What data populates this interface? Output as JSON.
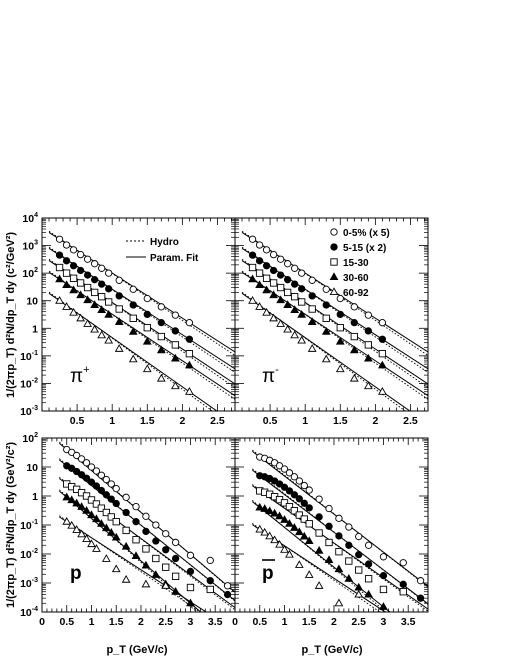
{
  "figure": {
    "y_label_top": "1/(2πp_T) d²N/dp_T dy (c²/GeV²)",
    "y_label_bottom": "1/(2πp_T) d²N/dp_T dy (GeV²/c²)",
    "x_label": "p_T (GeV/c)"
  },
  "legend_top": {
    "lines": [
      {
        "label": "Hydro",
        "style": "dotted"
      },
      {
        "label": "Param. Fit",
        "style": "solid"
      }
    ],
    "markers": [
      {
        "label": "0-5% (x 5)",
        "marker": "open-circle"
      },
      {
        "label": "5-15 (x 2)",
        "marker": "filled-circle"
      },
      {
        "label": "15-30",
        "marker": "open-square"
      },
      {
        "label": "30-60",
        "marker": "filled-triangle"
      },
      {
        "label": "60-92",
        "marker": "open-triangle"
      }
    ]
  },
  "chart_data": [
    {
      "type": "scatter",
      "panel": "pi-plus",
      "particle_label": "π+",
      "log_y": true,
      "xlim": [
        0,
        2.75
      ],
      "ylim": [
        0.001,
        10000
      ],
      "x_ticks": [
        "0.5",
        "1",
        "1.5",
        "2",
        "2.5"
      ],
      "y_ticks": [
        "10^-3",
        "10^-2",
        "10^-1",
        "1",
        "10",
        "10^2",
        "10^3",
        "10^4"
      ],
      "grid": false,
      "series": [
        {
          "name": "0-5% (x 5)",
          "marker": "open-circle",
          "x": [
            0.25,
            0.35,
            0.45,
            0.55,
            0.65,
            0.75,
            0.85,
            0.95,
            1.1,
            1.3,
            1.5,
            1.7,
            1.9,
            2.1
          ],
          "y": [
            1700,
            1050,
            700,
            470,
            320,
            220,
            150,
            100,
            55,
            26,
            12,
            6,
            3,
            1.6
          ]
        },
        {
          "name": "5-15 (x 2)",
          "marker": "filled-circle",
          "x": [
            0.25,
            0.35,
            0.45,
            0.55,
            0.65,
            0.75,
            0.85,
            0.95,
            1.1,
            1.3,
            1.5,
            1.7,
            1.9,
            2.1
          ],
          "y": [
            450,
            280,
            185,
            125,
            85,
            58,
            40,
            27,
            15,
            7,
            3.2,
            1.6,
            0.8,
            0.4
          ]
        },
        {
          "name": "15-30",
          "marker": "open-square",
          "x": [
            0.25,
            0.35,
            0.45,
            0.55,
            0.65,
            0.75,
            0.85,
            0.95,
            1.1,
            1.3,
            1.5,
            1.7,
            1.9,
            2.1
          ],
          "y": [
            160,
            100,
            65,
            44,
            30,
            20,
            14,
            9,
            5,
            2.3,
            1.05,
            0.5,
            0.25,
            0.12
          ]
        },
        {
          "name": "30-60",
          "marker": "filled-triangle",
          "x": [
            0.25,
            0.35,
            0.45,
            0.55,
            0.65,
            0.75,
            0.85,
            0.95,
            1.1,
            1.3,
            1.5,
            1.7,
            1.9,
            2.1
          ],
          "y": [
            60,
            37,
            24,
            16,
            10.5,
            7,
            4.6,
            3.1,
            1.7,
            0.75,
            0.33,
            0.16,
            0.08,
            0.045
          ]
        },
        {
          "name": "60-92",
          "marker": "open-triangle",
          "x": [
            0.25,
            0.35,
            0.45,
            0.55,
            0.65,
            0.75,
            0.85,
            0.95,
            1.1,
            1.3,
            1.5,
            1.7,
            1.9,
            2.1
          ],
          "y": [
            10,
            6,
            3.7,
            2.3,
            1.45,
            0.9,
            0.56,
            0.36,
            0.18,
            0.075,
            0.033,
            0.015,
            0.008,
            0.005
          ]
        }
      ]
    },
    {
      "type": "scatter",
      "panel": "pi-minus",
      "particle_label": "π-",
      "log_y": true,
      "xlim": [
        0,
        2.75
      ],
      "ylim": [
        0.001,
        10000
      ],
      "x_ticks": [
        "0.5",
        "1",
        "1.5",
        "2",
        "2.5"
      ],
      "y_ticks": [],
      "grid": false,
      "series": [
        {
          "name": "0-5% (x 5)",
          "marker": "open-circle",
          "x": [
            0.25,
            0.35,
            0.45,
            0.55,
            0.65,
            0.75,
            0.85,
            0.95,
            1.1,
            1.3,
            1.5,
            1.7,
            1.9,
            2.1
          ],
          "y": [
            1700,
            1050,
            700,
            470,
            320,
            220,
            150,
            100,
            55,
            26,
            12,
            6,
            3,
            1.6
          ]
        },
        {
          "name": "5-15 (x 2)",
          "marker": "filled-circle",
          "x": [
            0.25,
            0.35,
            0.45,
            0.55,
            0.65,
            0.75,
            0.85,
            0.95,
            1.1,
            1.3,
            1.5,
            1.7,
            1.9,
            2.1
          ],
          "y": [
            450,
            280,
            185,
            125,
            85,
            58,
            40,
            27,
            15,
            7,
            3.2,
            1.6,
            0.8,
            0.4
          ]
        },
        {
          "name": "15-30",
          "marker": "open-square",
          "x": [
            0.25,
            0.35,
            0.45,
            0.55,
            0.65,
            0.75,
            0.85,
            0.95,
            1.1,
            1.3,
            1.5,
            1.7,
            1.9,
            2.1
          ],
          "y": [
            160,
            100,
            65,
            44,
            30,
            20,
            14,
            9,
            5,
            2.3,
            1.05,
            0.5,
            0.25,
            0.12
          ]
        },
        {
          "name": "30-60",
          "marker": "filled-triangle",
          "x": [
            0.25,
            0.35,
            0.45,
            0.55,
            0.65,
            0.75,
            0.85,
            0.95,
            1.1,
            1.3,
            1.5,
            1.7,
            1.9,
            2.1
          ],
          "y": [
            60,
            37,
            24,
            16,
            10.5,
            7,
            4.6,
            3.1,
            1.7,
            0.75,
            0.33,
            0.16,
            0.08,
            0.045
          ]
        },
        {
          "name": "60-92",
          "marker": "open-triangle",
          "x": [
            0.25,
            0.35,
            0.45,
            0.55,
            0.65,
            0.75,
            0.85,
            0.95,
            1.1,
            1.3,
            1.5,
            1.7,
            1.9,
            2.1
          ],
          "y": [
            10,
            6,
            3.7,
            2.3,
            1.45,
            0.9,
            0.56,
            0.36,
            0.18,
            0.075,
            0.033,
            0.015,
            0.008,
            0.005
          ]
        }
      ]
    },
    {
      "type": "scatter",
      "panel": "proton",
      "particle_label": "p",
      "log_y": true,
      "xlim": [
        0,
        3.9
      ],
      "ylim": [
        0.0001,
        100
      ],
      "x_ticks": [
        "0",
        "0.5",
        "1",
        "1.5",
        "2",
        "2.5",
        "3",
        "3.5"
      ],
      "y_ticks": [
        "10^-4",
        "10^-3",
        "10^-2",
        "10^-1",
        "1",
        "10",
        "10^2"
      ],
      "grid": false,
      "series": [
        {
          "name": "0-5% (x 5)",
          "marker": "open-circle",
          "x": [
            0.5,
            0.6,
            0.7,
            0.8,
            0.9,
            1.0,
            1.1,
            1.2,
            1.3,
            1.4,
            1.5,
            1.7,
            1.9,
            2.1,
            2.3,
            2.5,
            2.7,
            3.0,
            3.4,
            3.75
          ],
          "y": [
            40,
            32,
            25,
            19,
            14,
            10,
            7.3,
            5.2,
            3.7,
            2.6,
            1.8,
            0.9,
            0.43,
            0.2,
            0.1,
            0.05,
            0.025,
            0.009,
            0.006,
            0.0008
          ]
        },
        {
          "name": "5-15 (x 2)",
          "marker": "filled-circle",
          "x": [
            0.5,
            0.6,
            0.7,
            0.8,
            0.9,
            1.0,
            1.1,
            1.2,
            1.3,
            1.4,
            1.5,
            1.7,
            1.9,
            2.1,
            2.3,
            2.5,
            2.7,
            3.0,
            3.4,
            3.75
          ],
          "y": [
            11,
            9,
            7,
            5.4,
            4.1,
            3.0,
            2.2,
            1.55,
            1.1,
            0.78,
            0.55,
            0.27,
            0.13,
            0.06,
            0.028,
            0.014,
            0.007,
            0.0025,
            0.0012,
            0.0004
          ]
        },
        {
          "name": "15-30",
          "marker": "open-square",
          "x": [
            0.5,
            0.6,
            0.7,
            0.8,
            0.9,
            1.0,
            1.1,
            1.2,
            1.3,
            1.4,
            1.5,
            1.7,
            1.9,
            2.1,
            2.3,
            2.5,
            2.7,
            3.0,
            3.4
          ],
          "y": [
            2.6,
            2.1,
            1.7,
            1.3,
            1.0,
            0.73,
            0.53,
            0.38,
            0.27,
            0.19,
            0.13,
            0.065,
            0.031,
            0.015,
            0.007,
            0.0035,
            0.0017,
            0.0007,
            0.0006
          ]
        },
        {
          "name": "30-60",
          "marker": "filled-triangle",
          "x": [
            0.5,
            0.6,
            0.7,
            0.8,
            0.9,
            1.0,
            1.1,
            1.2,
            1.3,
            1.4,
            1.5,
            1.7,
            1.9,
            2.1,
            2.3,
            2.5,
            2.7,
            3.0
          ],
          "y": [
            0.9,
            0.72,
            0.56,
            0.42,
            0.31,
            0.22,
            0.16,
            0.11,
            0.078,
            0.054,
            0.037,
            0.018,
            0.0085,
            0.004,
            0.0019,
            0.0009,
            0.0005,
            0.0002
          ]
        },
        {
          "name": "60-92",
          "marker": "open-triangle",
          "x": [
            0.5,
            0.6,
            0.7,
            0.8,
            0.9,
            1.0,
            1.1,
            1.3,
            1.5,
            1.7,
            2.1,
            2.5
          ],
          "y": [
            0.13,
            0.095,
            0.068,
            0.048,
            0.033,
            0.022,
            0.015,
            0.0068,
            0.003,
            0.0013,
            0.0009,
            0.0008
          ]
        }
      ]
    },
    {
      "type": "scatter",
      "panel": "antiproton",
      "particle_label": "p̄",
      "log_y": true,
      "xlim": [
        0,
        3.9
      ],
      "ylim": [
        0.0001,
        100
      ],
      "x_ticks": [
        "0",
        "0.5",
        "1",
        "1.5",
        "2",
        "2.5",
        "3",
        "3.5"
      ],
      "y_ticks": [],
      "grid": false,
      "series": [
        {
          "name": "0-5% (x 5)",
          "marker": "open-circle",
          "x": [
            0.5,
            0.6,
            0.7,
            0.8,
            0.9,
            1.0,
            1.1,
            1.2,
            1.3,
            1.4,
            1.5,
            1.7,
            1.9,
            2.1,
            2.3,
            2.5,
            2.7,
            3.0,
            3.4,
            3.75
          ],
          "y": [
            22,
            20,
            17,
            14,
            11,
            8.5,
            6.3,
            4.6,
            3.3,
            2.3,
            1.6,
            0.78,
            0.37,
            0.17,
            0.085,
            0.04,
            0.02,
            0.008,
            0.005,
            0.0012
          ]
        },
        {
          "name": "5-15 (x 2)",
          "marker": "filled-circle",
          "x": [
            0.5,
            0.6,
            0.7,
            0.8,
            0.9,
            1.0,
            1.1,
            1.2,
            1.3,
            1.4,
            1.5,
            1.7,
            1.9,
            2.1,
            2.3,
            2.5,
            2.7,
            3.0,
            3.4,
            3.75
          ],
          "y": [
            5,
            4.6,
            4,
            3.3,
            2.6,
            2.0,
            1.5,
            1.1,
            0.8,
            0.56,
            0.39,
            0.19,
            0.09,
            0.042,
            0.02,
            0.0095,
            0.0045,
            0.0018,
            0.0009,
            0.0003
          ]
        },
        {
          "name": "15-30",
          "marker": "open-square",
          "x": [
            0.5,
            0.6,
            0.7,
            0.8,
            0.9,
            1.0,
            1.1,
            1.2,
            1.3,
            1.4,
            1.5,
            1.7,
            1.9,
            2.1,
            2.3,
            2.5,
            2.7,
            3.0,
            3.4
          ],
          "y": [
            1.5,
            1.35,
            1.15,
            0.95,
            0.75,
            0.58,
            0.43,
            0.31,
            0.22,
            0.16,
            0.11,
            0.053,
            0.025,
            0.012,
            0.0057,
            0.0028,
            0.0014,
            0.0006,
            0.0005
          ]
        },
        {
          "name": "30-60",
          "marker": "filled-triangle",
          "x": [
            0.5,
            0.6,
            0.7,
            0.8,
            0.9,
            1.0,
            1.1,
            1.2,
            1.3,
            1.4,
            1.5,
            1.7,
            1.9,
            2.1,
            2.3,
            2.5,
            2.7,
            3.0
          ],
          "y": [
            0.4,
            0.36,
            0.3,
            0.25,
            0.2,
            0.15,
            0.11,
            0.08,
            0.057,
            0.04,
            0.028,
            0.013,
            0.0062,
            0.003,
            0.0014,
            0.0007,
            0.0004,
            0.00015
          ]
        },
        {
          "name": "60-92",
          "marker": "open-triangle",
          "x": [
            0.5,
            0.6,
            0.7,
            0.8,
            0.9,
            1.0,
            1.1,
            1.3,
            1.5,
            1.7,
            2.1,
            2.5
          ],
          "y": [
            0.07,
            0.055,
            0.041,
            0.03,
            0.021,
            0.014,
            0.0095,
            0.0042,
            0.0019,
            0.0008,
            0.0002,
            0.0004
          ]
        }
      ]
    }
  ]
}
